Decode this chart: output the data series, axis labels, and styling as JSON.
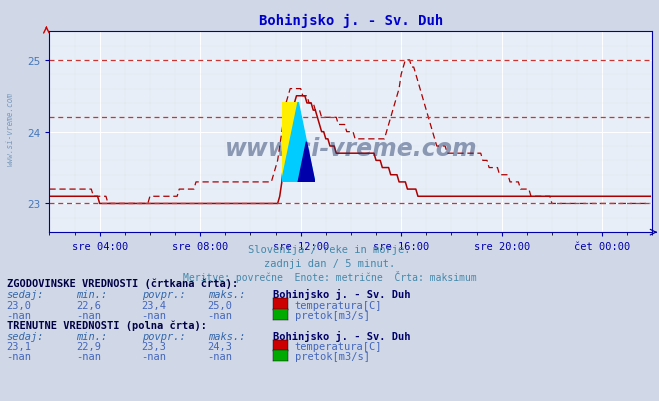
{
  "title": "Bohinjsko j. - Sv. Duh",
  "title_color": "#0000cc",
  "bg_color": "#d0d8e8",
  "plot_bg_color": "#e8eef8",
  "line_color": "#aa0000",
  "axis_color": "#0000aa",
  "xlabel_color": "#4477bb",
  "text_color": "#4488aa",
  "y_min": 22.6,
  "y_max": 25.25,
  "yticks": [
    23,
    24,
    25
  ],
  "xtick_positions": [
    24,
    72,
    120,
    168,
    216,
    264
  ],
  "xtick_labels": [
    "sre 04:00",
    "sre 08:00",
    "sre 12:00",
    "sre 16:00",
    "sre 20:00",
    "čet 00:00"
  ],
  "subtitle1": "Slovenija / reke in morje.",
  "subtitle2": "zadnji dan / 5 minut.",
  "subtitle3": "Meritve: povrečne  Enote: metrične  Črta: maksimum",
  "legend_colors_temp": "#cc0000",
  "legend_colors_pretok": "#00aa00",
  "watermark_text": "www.si-vreme.com",
  "hline_y": [
    25.0,
    24.2,
    23.0
  ],
  "solid_line_data": [
    23.1,
    23.1,
    23.1,
    23.1,
    23.1,
    23.1,
    23.1,
    23.1,
    23.1,
    23.1,
    23.1,
    23.1,
    23.1,
    23.1,
    23.1,
    23.1,
    23.1,
    23.1,
    23.1,
    23.1,
    23.1,
    23.1,
    23.1,
    23.1,
    23.0,
    23.0,
    23.0,
    23.0,
    23.0,
    23.0,
    23.0,
    23.0,
    23.0,
    23.0,
    23.0,
    23.0,
    23.0,
    23.0,
    23.0,
    23.0,
    23.0,
    23.0,
    23.0,
    23.0,
    23.0,
    23.0,
    23.0,
    23.0,
    23.0,
    23.0,
    23.0,
    23.0,
    23.0,
    23.0,
    23.0,
    23.0,
    23.0,
    23.0,
    23.0,
    23.0,
    23.0,
    23.0,
    23.0,
    23.0,
    23.0,
    23.0,
    23.0,
    23.0,
    23.0,
    23.0,
    23.0,
    23.0,
    23.0,
    23.0,
    23.0,
    23.0,
    23.0,
    23.0,
    23.0,
    23.0,
    23.0,
    23.0,
    23.0,
    23.0,
    23.0,
    23.0,
    23.0,
    23.0,
    23.0,
    23.0,
    23.0,
    23.0,
    23.0,
    23.0,
    23.0,
    23.0,
    23.0,
    23.0,
    23.0,
    23.0,
    23.0,
    23.0,
    23.0,
    23.0,
    23.0,
    23.0,
    23.0,
    23.0,
    23.0,
    23.0,
    23.1,
    23.3,
    23.6,
    23.9,
    24.1,
    24.2,
    24.3,
    24.4,
    24.5,
    24.5,
    24.5,
    24.5,
    24.5,
    24.4,
    24.4,
    24.4,
    24.3,
    24.3,
    24.2,
    24.1,
    24.0,
    24.0,
    23.9,
    23.9,
    23.8,
    23.8,
    23.8,
    23.7,
    23.7,
    23.7,
    23.7,
    23.7,
    23.7,
    23.7,
    23.7,
    23.7,
    23.7,
    23.7,
    23.7,
    23.7,
    23.7,
    23.7,
    23.7,
    23.7,
    23.7,
    23.7,
    23.6,
    23.6,
    23.6,
    23.5,
    23.5,
    23.5,
    23.5,
    23.4,
    23.4,
    23.4,
    23.4,
    23.3,
    23.3,
    23.3,
    23.3,
    23.2,
    23.2,
    23.2,
    23.2,
    23.2,
    23.1,
    23.1,
    23.1,
    23.1,
    23.1,
    23.1,
    23.1,
    23.1,
    23.1,
    23.1,
    23.1,
    23.1,
    23.1,
    23.1,
    23.1,
    23.1,
    23.1,
    23.1,
    23.1,
    23.1,
    23.1,
    23.1,
    23.1,
    23.1,
    23.1,
    23.1,
    23.1,
    23.1,
    23.1,
    23.1,
    23.1,
    23.1,
    23.1,
    23.1,
    23.1,
    23.1,
    23.1,
    23.1,
    23.1,
    23.1,
    23.1,
    23.1,
    23.1,
    23.1,
    23.1,
    23.1,
    23.1,
    23.1,
    23.1,
    23.1,
    23.1,
    23.1,
    23.1,
    23.1,
    23.1,
    23.1,
    23.1,
    23.1,
    23.1,
    23.1,
    23.1,
    23.1,
    23.1,
    23.1,
    23.1,
    23.1,
    23.1,
    23.1,
    23.1,
    23.1,
    23.1,
    23.1,
    23.1,
    23.1,
    23.1,
    23.1,
    23.1,
    23.1,
    23.1,
    23.1,
    23.1,
    23.1,
    23.1,
    23.1,
    23.1,
    23.1,
    23.1,
    23.1,
    23.1,
    23.1,
    23.1,
    23.1,
    23.1,
    23.1,
    23.1,
    23.1,
    23.1,
    23.1,
    23.1,
    23.1,
    23.1,
    23.1,
    23.1,
    23.1,
    23.1,
    23.1,
    23.1,
    23.1,
    23.1,
    23.1,
    23.1,
    23.1,
    23.1,
    23.1
  ],
  "dashed_line_data": [
    23.2,
    23.2,
    23.2,
    23.2,
    23.2,
    23.2,
    23.2,
    23.2,
    23.2,
    23.2,
    23.2,
    23.2,
    23.2,
    23.2,
    23.2,
    23.2,
    23.2,
    23.2,
    23.2,
    23.2,
    23.2,
    23.1,
    23.1,
    23.1,
    23.1,
    23.1,
    23.1,
    23.1,
    23.0,
    23.0,
    23.0,
    23.0,
    23.0,
    23.0,
    23.0,
    23.0,
    23.0,
    23.0,
    23.0,
    23.0,
    23.0,
    23.0,
    23.0,
    23.0,
    23.0,
    23.0,
    23.0,
    23.0,
    23.1,
    23.1,
    23.1,
    23.1,
    23.1,
    23.1,
    23.1,
    23.1,
    23.1,
    23.1,
    23.1,
    23.1,
    23.1,
    23.1,
    23.2,
    23.2,
    23.2,
    23.2,
    23.2,
    23.2,
    23.2,
    23.2,
    23.3,
    23.3,
    23.3,
    23.3,
    23.3,
    23.3,
    23.3,
    23.3,
    23.3,
    23.3,
    23.3,
    23.3,
    23.3,
    23.3,
    23.3,
    23.3,
    23.3,
    23.3,
    23.3,
    23.3,
    23.3,
    23.3,
    23.3,
    23.3,
    23.3,
    23.3,
    23.3,
    23.3,
    23.3,
    23.3,
    23.3,
    23.3,
    23.3,
    23.3,
    23.3,
    23.3,
    23.3,
    23.4,
    23.5,
    23.6,
    23.8,
    24.0,
    24.2,
    24.4,
    24.5,
    24.6,
    24.6,
    24.6,
    24.6,
    24.6,
    24.6,
    24.5,
    24.5,
    24.5,
    24.4,
    24.4,
    24.4,
    24.3,
    24.3,
    24.3,
    24.2,
    24.2,
    24.2,
    24.2,
    24.2,
    24.2,
    24.2,
    24.2,
    24.1,
    24.1,
    24.1,
    24.1,
    24.0,
    24.0,
    24.0,
    24.0,
    23.9,
    23.9,
    23.9,
    23.9,
    23.9,
    23.9,
    23.9,
    23.9,
    23.9,
    23.9,
    23.9,
    23.9,
    23.9,
    23.9,
    23.9,
    24.0,
    24.1,
    24.2,
    24.3,
    24.4,
    24.5,
    24.6,
    24.8,
    24.9,
    25.0,
    25.0,
    25.0,
    24.9,
    24.9,
    24.8,
    24.7,
    24.6,
    24.5,
    24.4,
    24.3,
    24.2,
    24.1,
    24.0,
    23.9,
    23.8,
    23.8,
    23.8,
    23.8,
    23.8,
    23.7,
    23.7,
    23.7,
    23.7,
    23.7,
    23.7,
    23.7,
    23.7,
    23.7,
    23.7,
    23.7,
    23.7,
    23.7,
    23.7,
    23.7,
    23.7,
    23.7,
    23.6,
    23.6,
    23.6,
    23.5,
    23.5,
    23.5,
    23.5,
    23.5,
    23.4,
    23.4,
    23.4,
    23.4,
    23.4,
    23.3,
    23.3,
    23.3,
    23.3,
    23.3,
    23.2,
    23.2,
    23.2,
    23.2,
    23.2,
    23.1,
    23.1,
    23.1,
    23.1,
    23.1,
    23.1,
    23.1,
    23.1,
    23.1,
    23.1,
    23.0,
    23.0,
    23.0,
    23.0,
    23.0,
    23.0,
    23.0,
    23.0,
    23.0,
    23.0,
    23.0,
    23.0,
    23.0,
    23.0,
    23.0,
    23.0,
    23.0,
    23.0,
    23.0,
    23.0,
    23.0,
    23.0,
    23.0,
    23.0,
    23.0,
    23.0,
    23.0,
    23.0,
    23.0,
    23.0,
    23.0,
    23.0,
    23.0,
    23.0,
    23.0,
    23.0,
    23.0,
    23.0,
    23.0,
    23.0,
    23.0,
    23.0,
    23.0,
    23.0,
    23.0,
    23.0,
    23.0,
    23.0,
    23.0,
    23.0
  ]
}
